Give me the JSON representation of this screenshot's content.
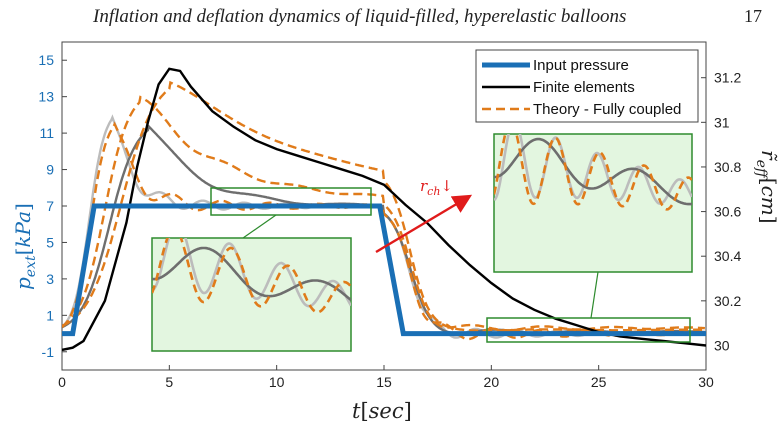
{
  "page_header": {
    "title": "Inflation and deflation dynamics of liquid-filled, hyperelastic balloons",
    "page_number": "17"
  },
  "colors": {
    "input": "#1a6fb5",
    "fe": "#000000",
    "theory": "#e07b1a",
    "grey_dark": "#6e6e6e",
    "grey_light": "#bcbcbc",
    "inset_fill": "#e3f6e0",
    "inset_border": "#2e8b2e",
    "annotation": "#e01b1b"
  },
  "chart_data": {
    "type": "line",
    "xlabel": "t[sec]",
    "ylabel_left": "p_ext[kPa]",
    "ylabel_right": "r̃_eff[cm]",
    "xlim": [
      0,
      30
    ],
    "ylim_left": [
      -2,
      16
    ],
    "ylim_right": [
      29.89,
      31.36
    ],
    "x_ticks": [
      "0",
      "5",
      "10",
      "15",
      "20",
      "25",
      "30"
    ],
    "y_left_ticks": [
      "-1",
      "1",
      "3",
      "5",
      "7",
      "9",
      "11",
      "13",
      "15"
    ],
    "y_right_ticks": [
      "30",
      "30.2",
      "30.4",
      "30.6",
      "30.8",
      "31",
      "31.2"
    ],
    "annotation": {
      "text": "r_ch↓"
    },
    "legend": {
      "position": "top-right",
      "entries": [
        "Input pressure",
        "Finite elements",
        "Theory - Fully coupled"
      ]
    },
    "series": [
      {
        "name": "Input pressure",
        "axis": "left",
        "style": "solid-thick",
        "x": [
          0,
          0.5,
          1.5,
          14.8,
          15.9,
          30
        ],
        "y": [
          0,
          0,
          7,
          7,
          0,
          0
        ]
      },
      {
        "name": "Finite elements",
        "axis": "right",
        "x": [
          0,
          0.5,
          1,
          2,
          3,
          3.5,
          4,
          4.5,
          5,
          5.5,
          6,
          7,
          8,
          9,
          10,
          11,
          12,
          13,
          14,
          15,
          16,
          17,
          18,
          19,
          20,
          21,
          22,
          23,
          24,
          25,
          26,
          27,
          28,
          29,
          30
        ],
        "y": [
          29.98,
          29.99,
          30.02,
          30.2,
          30.55,
          30.8,
          31.0,
          31.17,
          31.24,
          31.23,
          31.16,
          31.05,
          30.98,
          30.92,
          30.88,
          30.85,
          30.82,
          30.79,
          30.76,
          30.72,
          30.63,
          30.55,
          30.45,
          30.36,
          30.28,
          30.21,
          30.16,
          30.12,
          30.09,
          30.06,
          30.04,
          30.03,
          30.02,
          30.01,
          30.0
        ]
      }
    ]
  }
}
